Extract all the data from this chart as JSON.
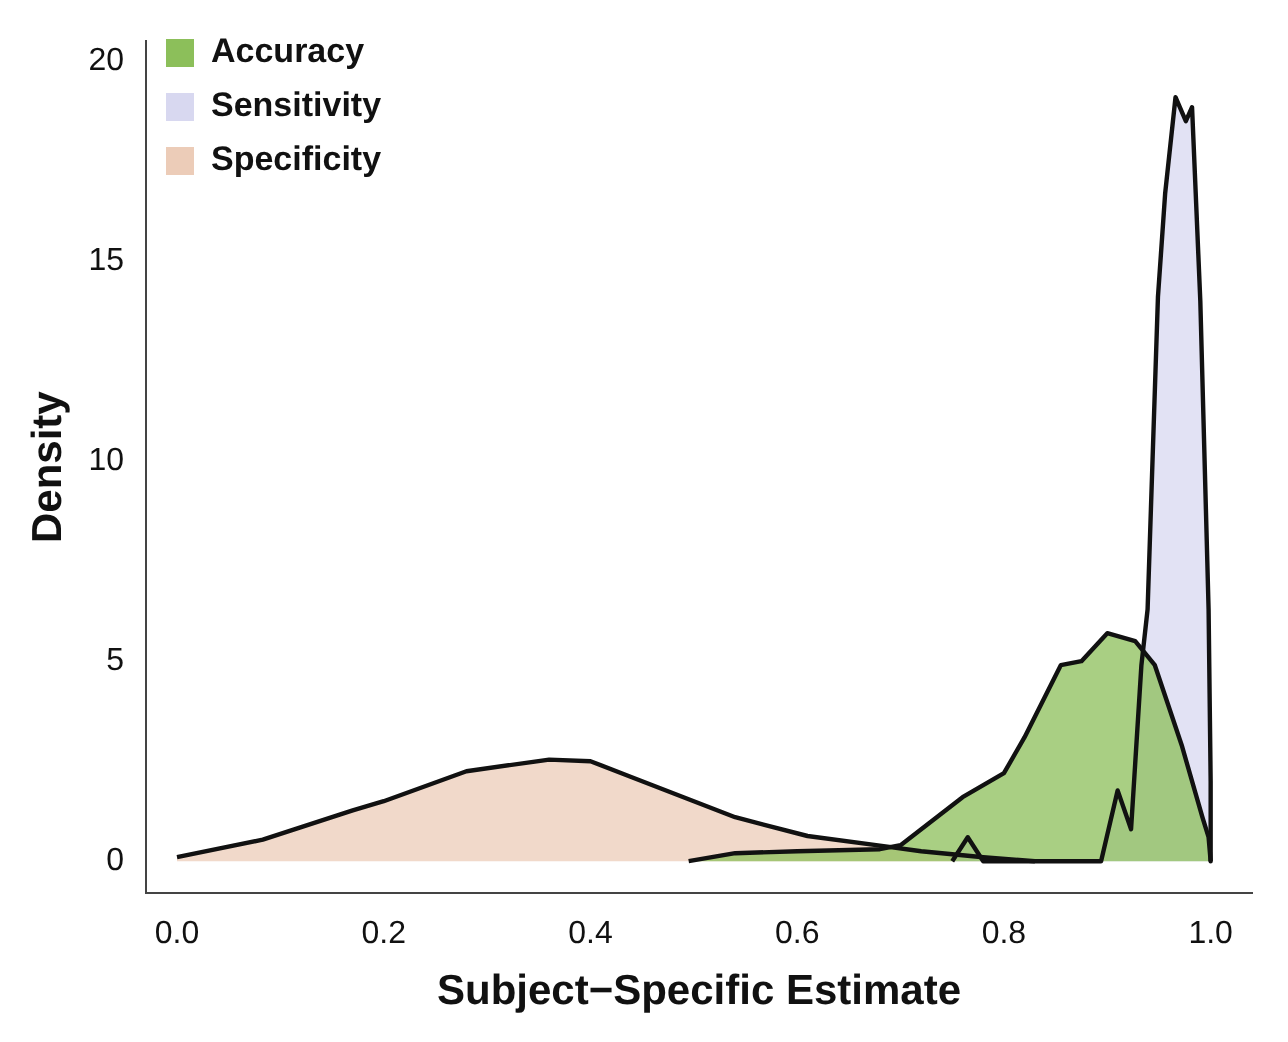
{
  "chart_data": {
    "type": "area",
    "xlabel": "Subject−Specific Estimate",
    "ylabel": "Density",
    "xlim": [
      -0.03,
      1.04
    ],
    "xticks": [
      {
        "value": 0,
        "label": "0.0"
      },
      0.2,
      0.4,
      0.6,
      0.8,
      {
        "value": 1,
        "label": "1.0"
      }
    ],
    "ylim": [
      -0.8,
      20.5
    ],
    "yticks": [
      0,
      5,
      10,
      15,
      20
    ],
    "grid": false,
    "legend": "top left",
    "marker": "none",
    "line_style": "solid",
    "series": [
      {
        "name": "Accuracy",
        "color": "#8cbf5a",
        "x": [
          0.495,
          0.54,
          0.6,
          0.68,
          0.7,
          0.72,
          0.76,
          0.8,
          0.82,
          0.855,
          0.875,
          0.9,
          0.927,
          0.946,
          0.972,
          0.992,
          0.998,
          1.0
        ],
        "values": [
          0,
          0.2,
          0.25,
          0.3,
          0.4,
          0.8,
          1.6,
          2.2,
          3.1,
          4.9,
          5.0,
          5.7,
          5.5,
          4.9,
          2.9,
          1.1,
          0.6,
          0
        ]
      },
      {
        "name": "Sensitivity",
        "color": "#d8d8f0",
        "x": [
          0.75,
          0.765,
          0.78,
          0.894,
          0.91,
          0.923,
          0.933,
          0.939,
          0.949,
          0.956,
          0.966,
          0.976,
          0.982,
          0.99,
          0.998,
          1.0,
          1.0
        ],
        "values": [
          0,
          0.6,
          0,
          0,
          1.77,
          0.8,
          4.9,
          6.3,
          14.1,
          16.7,
          19.1,
          18.5,
          18.85,
          14,
          6.3,
          2,
          0
        ]
      },
      {
        "name": "Specificity",
        "color": "#ecccb8",
        "x": [
          0,
          0.083,
          0.17,
          0.2,
          0.28,
          0.36,
          0.4,
          0.44,
          0.54,
          0.61,
          0.68,
          0.72,
          0.78,
          0.83
        ],
        "values": [
          0.1,
          0.54,
          1.27,
          1.5,
          2.25,
          2.54,
          2.5,
          2.1,
          1.1,
          0.63,
          0.39,
          0.25,
          0.1,
          0
        ]
      }
    ]
  }
}
